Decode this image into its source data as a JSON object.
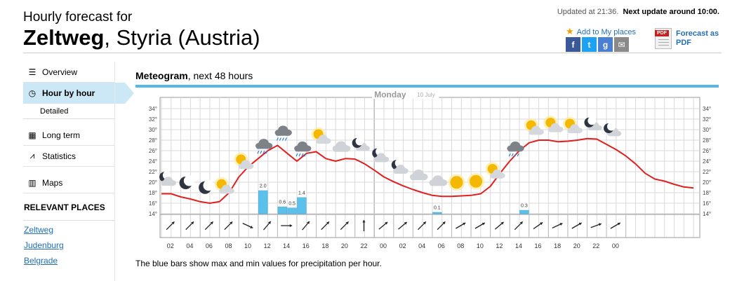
{
  "header": {
    "subtitle": "Hourly forecast for",
    "city": "Zeltweg",
    "region": ", Styria (Austria)",
    "updated": "Updated at 21:36.",
    "next_update": "Next update around 10:00."
  },
  "actions": {
    "add_favorites": "Add to My places",
    "pdf_label_1": "Forecast as",
    "pdf_label_2": "PDF",
    "pdf_tag": "PDF",
    "share": [
      {
        "name": "facebook-icon",
        "glyph": "f",
        "color": "#3b5998"
      },
      {
        "name": "twitter-icon",
        "glyph": "t",
        "color": "#1da1f2"
      },
      {
        "name": "google-plus-icon",
        "glyph": "g",
        "color": "#4a7fd4"
      },
      {
        "name": "email-icon",
        "glyph": "✉",
        "color": "#8a8a8a"
      }
    ]
  },
  "sidebar": {
    "items": [
      {
        "label": "Overview",
        "icon": "list-icon"
      },
      {
        "label": "Hour by hour",
        "icon": "clock-icon"
      },
      {
        "label": "Detailed",
        "icon": ""
      },
      {
        "label": "Long term",
        "icon": "calendar-icon"
      },
      {
        "label": "Statistics",
        "icon": "chart-icon"
      },
      {
        "label": "Maps",
        "icon": "map-icon"
      }
    ],
    "relevant_title": "RELEVANT PLACES",
    "places": [
      "Zeltweg",
      "Judenburg",
      "Belgrade"
    ]
  },
  "meteogram": {
    "title_bold": "Meteogram",
    "title_rest": ", next 48 hours",
    "day_label": "Monday",
    "day_date": "10 July",
    "note": "The blue bars show max and min values for precipitation per hour."
  },
  "chart_data": {
    "type": "line",
    "title": "Meteogram, next 48 hours",
    "ylabel": "",
    "y_ticks": [
      "34°",
      "32°",
      "30°",
      "28°",
      "26°",
      "24°",
      "22°",
      "20°",
      "18°",
      "16°",
      "14°"
    ],
    "ylim": [
      14,
      34
    ],
    "x_labels": [
      "02",
      "04",
      "06",
      "08",
      "10",
      "12",
      "14",
      "16",
      "18",
      "20",
      "22",
      "00",
      "02",
      "04",
      "06",
      "08",
      "10",
      "12",
      "14",
      "16",
      "18",
      "20",
      "22",
      "00"
    ],
    "temperature": {
      "color": "#e02020",
      "points": [
        [
          0,
          17.8
        ],
        [
          1,
          17.8
        ],
        [
          2,
          17.2
        ],
        [
          3,
          16.8
        ],
        [
          4,
          16.3
        ],
        [
          5,
          16.0
        ],
        [
          6,
          16.3
        ],
        [
          7,
          18.0
        ],
        [
          8,
          21.0
        ],
        [
          9,
          23.0
        ],
        [
          10,
          24.5
        ],
        [
          11,
          26.0
        ],
        [
          12,
          27.0
        ],
        [
          13,
          25.5
        ],
        [
          14,
          24.0
        ],
        [
          15,
          25.5
        ],
        [
          16,
          25.8
        ],
        [
          17,
          24.5
        ],
        [
          18,
          24.0
        ],
        [
          19,
          24.5
        ],
        [
          20,
          24.4
        ],
        [
          21,
          23.5
        ],
        [
          22,
          22.3
        ],
        [
          23,
          21.0
        ],
        [
          24,
          20.1
        ],
        [
          25,
          19.3
        ],
        [
          26,
          18.6
        ],
        [
          27,
          18.0
        ],
        [
          28,
          17.5
        ],
        [
          29,
          17.3
        ],
        [
          30,
          17.3
        ],
        [
          31,
          17.4
        ],
        [
          32,
          17.5
        ],
        [
          33,
          17.8
        ],
        [
          34,
          19.2
        ],
        [
          35,
          21.7
        ],
        [
          36,
          24.0
        ],
        [
          37,
          26.0
        ],
        [
          38,
          27.5
        ],
        [
          39,
          28.0
        ],
        [
          40,
          28.0
        ],
        [
          41,
          27.7
        ],
        [
          42,
          27.8
        ],
        [
          43,
          28.0
        ],
        [
          44,
          28.3
        ],
        [
          45,
          28.2
        ],
        [
          46,
          27.2
        ],
        [
          47,
          26.2
        ],
        [
          48,
          25.0
        ],
        [
          49,
          23.5
        ],
        [
          50,
          21.7
        ],
        [
          51,
          20.6
        ],
        [
          52,
          20.2
        ],
        [
          53,
          19.6
        ],
        [
          54,
          19.1
        ],
        [
          55,
          18.9
        ]
      ]
    },
    "precipitation": [
      {
        "hour": 10,
        "value": 2.0
      },
      {
        "hour": 12,
        "value": 0.6
      },
      {
        "hour": 13,
        "value": 0.5
      },
      {
        "hour": 14,
        "value": 1.4
      },
      {
        "hour": 28,
        "value": 0.1
      },
      {
        "hour": 37,
        "value": 0.3
      }
    ],
    "symbols": [
      {
        "hour": 0,
        "icon": "cloud-moon"
      },
      {
        "hour": 2,
        "icon": "moon"
      },
      {
        "hour": 4,
        "icon": "moon"
      },
      {
        "hour": 6,
        "icon": "sun-cloud"
      },
      {
        "hour": 8,
        "icon": "sun-cloud"
      },
      {
        "hour": 10,
        "icon": "rain-cloud"
      },
      {
        "hour": 12,
        "icon": "rain-cloud"
      },
      {
        "hour": 14,
        "icon": "rain-cloud"
      },
      {
        "hour": 16,
        "icon": "sun-cloud"
      },
      {
        "hour": 18,
        "icon": "cloud"
      },
      {
        "hour": 20,
        "icon": "moon-cloud"
      },
      {
        "hour": 22,
        "icon": "cloud-moon"
      },
      {
        "hour": 24,
        "icon": "cloud-moon"
      },
      {
        "hour": 26,
        "icon": "cloud"
      },
      {
        "hour": 28,
        "icon": "cloud"
      },
      {
        "hour": 30,
        "icon": "sun"
      },
      {
        "hour": 32,
        "icon": "sun"
      },
      {
        "hour": 34,
        "icon": "sun-cloud"
      },
      {
        "hour": 36,
        "icon": "rain-cloud"
      },
      {
        "hour": 38,
        "icon": "sun-cloud"
      },
      {
        "hour": 40,
        "icon": "sun-cloud"
      },
      {
        "hour": 42,
        "icon": "sun-cloud"
      },
      {
        "hour": 44,
        "icon": "moon-cloud"
      },
      {
        "hour": 46,
        "icon": "moon-cloud"
      }
    ],
    "wind_directions_deg": [
      45,
      45,
      45,
      45,
      115,
      40,
      90,
      40,
      45,
      45,
      0,
      50,
      50,
      45,
      45,
      60,
      60,
      50,
      45,
      55,
      65,
      60,
      70,
      60
    ],
    "grid": true
  }
}
